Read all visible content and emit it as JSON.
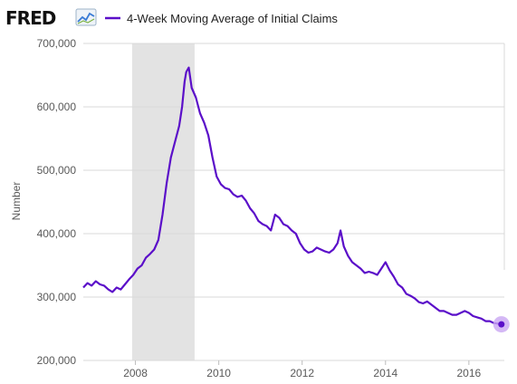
{
  "brand": {
    "logo": "FRED",
    "logo_icon": "line-chart-icon"
  },
  "legend": {
    "label": "4-Week Moving Average of Initial Claims"
  },
  "colors": {
    "series": "#5b0fc9",
    "recession": "#e3e3e3",
    "grid": "#d9d9d9",
    "endpoint_halo": "#c9a6f2"
  },
  "chart_data": {
    "type": "line",
    "title": "",
    "xlabel": "",
    "ylabel": "Number",
    "xlim": [
      2006.75,
      2016.85
    ],
    "ylim": [
      200000,
      700000
    ],
    "x_ticks": [
      2008,
      2010,
      2012,
      2014,
      2016
    ],
    "x_tick_labels": [
      "2008",
      "2010",
      "2012",
      "2014",
      "2016"
    ],
    "y_ticks": [
      200000,
      300000,
      400000,
      500000,
      600000,
      700000
    ],
    "y_tick_labels": [
      "200,000",
      "300,000",
      "400,000",
      "500,000",
      "600,000",
      "700,000"
    ],
    "grid": true,
    "legend_position": "top",
    "recession_shading": [
      [
        2007.92,
        2009.42
      ]
    ],
    "series": [
      {
        "name": "4-Week Moving Average of Initial Claims",
        "x": [
          2006.75,
          2006.85,
          2006.95,
          2007.05,
          2007.15,
          2007.25,
          2007.35,
          2007.45,
          2007.55,
          2007.65,
          2007.75,
          2007.85,
          2007.95,
          2008.05,
          2008.15,
          2008.25,
          2008.35,
          2008.45,
          2008.55,
          2008.65,
          2008.75,
          2008.85,
          2008.95,
          2009.05,
          2009.12,
          2009.18,
          2009.22,
          2009.28,
          2009.35,
          2009.45,
          2009.55,
          2009.65,
          2009.75,
          2009.85,
          2009.95,
          2010.05,
          2010.15,
          2010.25,
          2010.35,
          2010.45,
          2010.55,
          2010.65,
          2010.75,
          2010.85,
          2010.95,
          2011.05,
          2011.15,
          2011.25,
          2011.35,
          2011.45,
          2011.55,
          2011.65,
          2011.75,
          2011.85,
          2011.95,
          2012.05,
          2012.15,
          2012.25,
          2012.35,
          2012.45,
          2012.55,
          2012.65,
          2012.75,
          2012.85,
          2012.92,
          2013.0,
          2013.1,
          2013.2,
          2013.3,
          2013.4,
          2013.5,
          2013.6,
          2013.7,
          2013.8,
          2013.9,
          2014.0,
          2014.1,
          2014.2,
          2014.3,
          2014.4,
          2014.5,
          2014.6,
          2014.7,
          2014.8,
          2014.9,
          2015.0,
          2015.1,
          2015.2,
          2015.3,
          2015.4,
          2015.5,
          2015.6,
          2015.7,
          2015.8,
          2015.9,
          2016.0,
          2016.1,
          2016.2,
          2016.3,
          2016.4,
          2016.5,
          2016.6,
          2016.7,
          2016.78
        ],
        "values": [
          315000,
          322000,
          318000,
          325000,
          320000,
          318000,
          312000,
          308000,
          315000,
          312000,
          320000,
          328000,
          335000,
          345000,
          350000,
          362000,
          368000,
          375000,
          390000,
          430000,
          480000,
          520000,
          545000,
          570000,
          600000,
          640000,
          655000,
          662000,
          630000,
          615000,
          590000,
          575000,
          555000,
          520000,
          490000,
          478000,
          472000,
          470000,
          462000,
          458000,
          460000,
          452000,
          440000,
          432000,
          420000,
          415000,
          412000,
          405000,
          430000,
          425000,
          415000,
          412000,
          405000,
          400000,
          385000,
          375000,
          370000,
          372000,
          378000,
          375000,
          372000,
          370000,
          375000,
          385000,
          405000,
          380000,
          365000,
          355000,
          350000,
          345000,
          338000,
          340000,
          338000,
          335000,
          345000,
          355000,
          342000,
          332000,
          320000,
          315000,
          305000,
          302000,
          298000,
          292000,
          290000,
          293000,
          288000,
          283000,
          278000,
          278000,
          275000,
          272000,
          272000,
          275000,
          278000,
          275000,
          270000,
          268000,
          266000,
          262000,
          262000,
          259000,
          258000,
          257000
        ]
      }
    ]
  }
}
